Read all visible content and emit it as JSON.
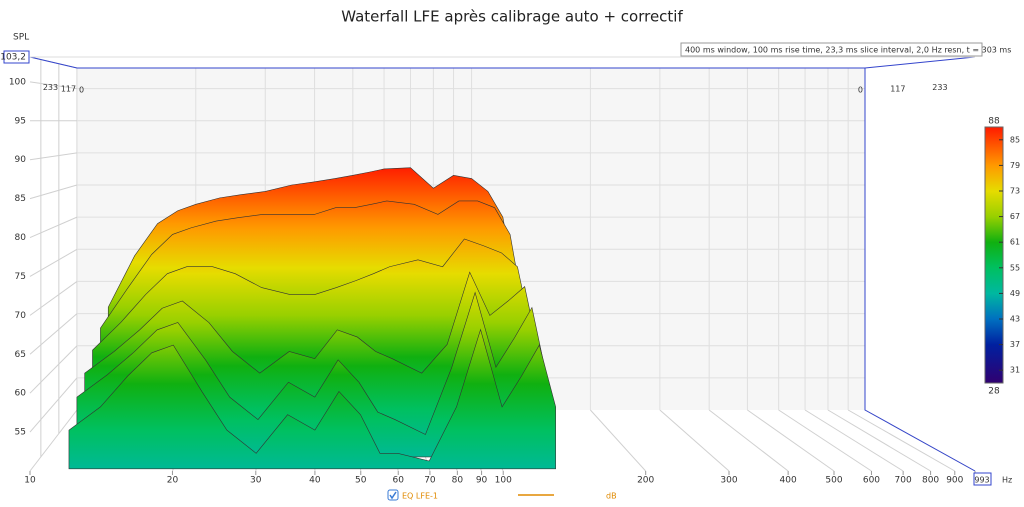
{
  "chart_data": {
    "type": "waterfall",
    "title": "Waterfall LFE après calibrage auto + correctif",
    "annotation": "400 ms window, 100 ms rise time, 23,3 ms slice interval, 2,0 Hz resn, t = 303 ms",
    "y_label": "SPL",
    "x_unit": "Hz",
    "log_x": true,
    "grid": true,
    "xlim": [
      10,
      993
    ],
    "xticks": [
      10,
      20,
      30,
      40,
      50,
      60,
      70,
      80,
      90,
      100,
      200,
      300,
      400,
      500,
      600,
      700,
      800,
      900,
      993
    ],
    "ylim": [
      50,
      103.2
    ],
    "yticks": [
      55,
      60,
      65,
      70,
      75,
      80,
      85,
      90,
      95,
      100,
      {
        "value": 103.2,
        "label": "103,2"
      }
    ],
    "zlim": [
      0,
      303
    ],
    "zticks": [
      0,
      117,
      233
    ],
    "x": [
      12,
      14,
      16,
      18,
      20,
      23,
      26,
      30,
      35,
      40,
      45,
      50,
      55,
      60,
      70,
      80,
      90,
      100,
      110,
      120,
      130
    ],
    "series": [
      {
        "time": 0,
        "values": [
          66,
          74,
          79,
          81,
          82,
          83,
          83.5,
          84,
          85,
          85.5,
          86,
          86.5,
          87,
          87.5,
          87.7,
          84.5,
          86.5,
          86,
          84,
          80,
          68
        ]
      },
      {
        "time": 58,
        "values": [
          64,
          70,
          75,
          78,
          79,
          80,
          80.5,
          81,
          81,
          81,
          82,
          82,
          82.5,
          83,
          82.5,
          81,
          83,
          83,
          82,
          78,
          66
        ]
      },
      {
        "time": 117,
        "values": [
          62,
          66,
          70,
          73,
          74,
          74,
          73,
          71,
          70,
          70,
          71,
          72,
          73,
          74,
          75,
          74,
          78,
          77,
          76,
          74,
          64
        ]
      },
      {
        "time": 175,
        "values": [
          60,
          63,
          66,
          69,
          70,
          67,
          63,
          60,
          63,
          62,
          66,
          65,
          63,
          62,
          60,
          64,
          74,
          68,
          70,
          72,
          62
        ]
      },
      {
        "time": 233,
        "values": [
          58,
          61,
          64,
          67,
          68,
          63,
          58,
          55,
          60,
          58,
          63,
          60,
          56,
          55,
          53,
          62,
          72,
          62,
          66,
          70,
          60
        ]
      },
      {
        "time": 292,
        "values": [
          55,
          58,
          62,
          65,
          66,
          60,
          55,
          52,
          57,
          55,
          60,
          57,
          52,
          52,
          51,
          58,
          68,
          58,
          62,
          66,
          58
        ]
      }
    ],
    "clim": [
      28,
      88
    ],
    "cticks": [
      31,
      37,
      43,
      49,
      55,
      61,
      67,
      73,
      79,
      85
    ],
    "colorscale_stops": [
      {
        "value": 88,
        "color": "#ff1a00"
      },
      {
        "value": 79,
        "color": "#ff9900"
      },
      {
        "value": 73,
        "color": "#e6dc00"
      },
      {
        "value": 67,
        "color": "#98d000"
      },
      {
        "value": 61,
        "color": "#10b010"
      },
      {
        "value": 55,
        "color": "#00c060"
      },
      {
        "value": 49,
        "color": "#00b8a0"
      },
      {
        "value": 43,
        "color": "#0070c0"
      },
      {
        "value": 37,
        "color": "#0020a0"
      },
      {
        "value": 28,
        "color": "#300070"
      }
    ],
    "legend": {
      "series_name": "EQ LFE-1",
      "unit": "dB",
      "color": "#e08a00"
    }
  }
}
